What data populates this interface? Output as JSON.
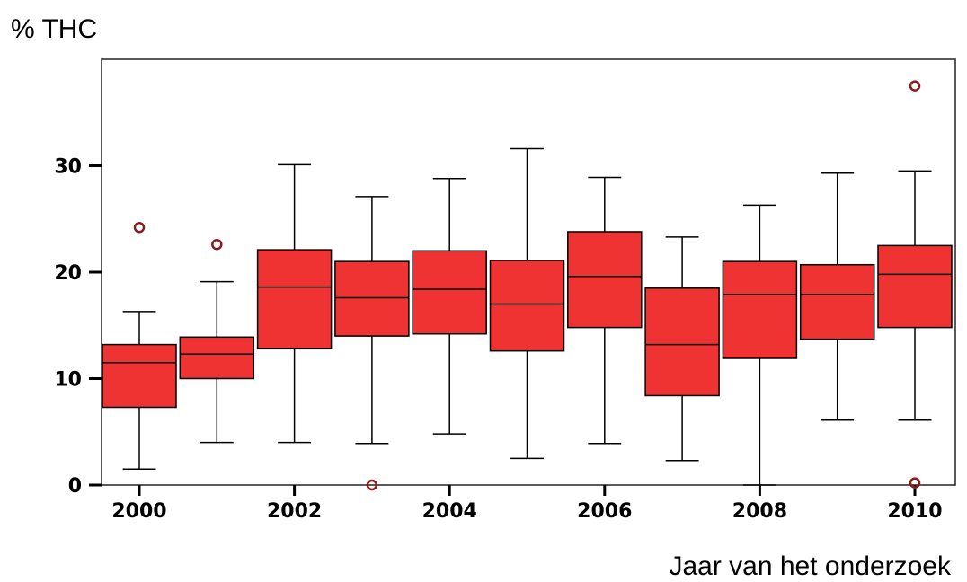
{
  "chart_data": {
    "type": "boxplot",
    "title": "",
    "ylabel": "% THC",
    "xlabel": "Jaar van het onderzoek",
    "ylim": [
      0,
      40
    ],
    "y_ticks": [
      0,
      10,
      20,
      30
    ],
    "x_tick_labels": [
      "2000",
      "2002",
      "2004",
      "2006",
      "2008",
      "2010"
    ],
    "grid": false,
    "legend": "none",
    "box_color": "#ef3232",
    "outlier_color": "#8b1a1a",
    "series": [
      {
        "category": "2000",
        "whisker_low": 1.5,
        "q1": 7.3,
        "median": 11.5,
        "q3": 13.2,
        "whisker_high": 16.3,
        "outliers": [
          24.2
        ]
      },
      {
        "category": "2001",
        "whisker_low": 4.0,
        "q1": 10.0,
        "median": 12.3,
        "q3": 13.9,
        "whisker_high": 19.1,
        "outliers": [
          22.6
        ]
      },
      {
        "category": "2002",
        "whisker_low": 4.0,
        "q1": 12.8,
        "median": 18.6,
        "q3": 22.1,
        "whisker_high": 30.1,
        "outliers": []
      },
      {
        "category": "2003",
        "whisker_low": 3.9,
        "q1": 14.0,
        "median": 17.6,
        "q3": 21.0,
        "whisker_high": 27.1,
        "outliers": [
          0.0
        ]
      },
      {
        "category": "2004",
        "whisker_low": 4.8,
        "q1": 14.2,
        "median": 18.4,
        "q3": 22.0,
        "whisker_high": 28.8,
        "outliers": []
      },
      {
        "category": "2005",
        "whisker_low": 2.5,
        "q1": 12.6,
        "median": 17.0,
        "q3": 21.1,
        "whisker_high": 31.6,
        "outliers": []
      },
      {
        "category": "2006",
        "whisker_low": 3.9,
        "q1": 14.8,
        "median": 19.6,
        "q3": 23.8,
        "whisker_high": 28.9,
        "outliers": []
      },
      {
        "category": "2007",
        "whisker_low": 2.3,
        "q1": 8.4,
        "median": 13.2,
        "q3": 18.5,
        "whisker_high": 23.3,
        "outliers": []
      },
      {
        "category": "2008",
        "whisker_low": 0.0,
        "q1": 11.9,
        "median": 17.9,
        "q3": 21.0,
        "whisker_high": 26.3,
        "outliers": []
      },
      {
        "category": "2009",
        "whisker_low": 6.1,
        "q1": 13.7,
        "median": 17.9,
        "q3": 20.7,
        "whisker_high": 29.3,
        "outliers": []
      },
      {
        "category": "2010",
        "whisker_low": 6.1,
        "q1": 14.8,
        "median": 19.8,
        "q3": 22.5,
        "whisker_high": 29.5,
        "outliers": [
          37.5,
          0.2
        ]
      }
    ]
  }
}
